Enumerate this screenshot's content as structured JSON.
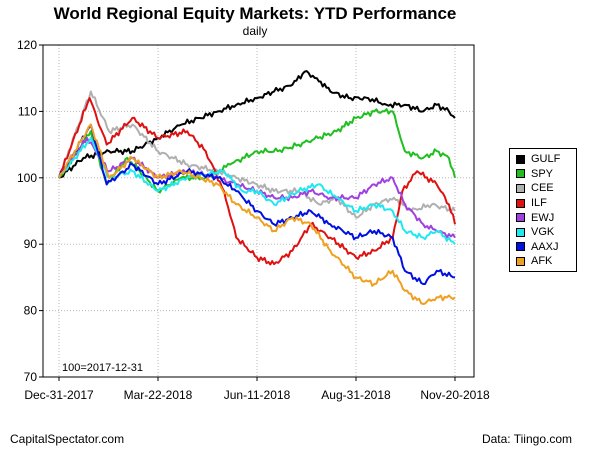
{
  "title": "World Regional Equity Markets: YTD Performance",
  "subtitle": "daily",
  "baseline_note": "100=2017-12-31",
  "footer": {
    "source_left": "CapitalSpectator.com",
    "source_right": "Data: Tiingo.com"
  },
  "colors": {
    "GULF": "#000000",
    "SPY": "#1fbf1f",
    "CEE": "#b0b0b0",
    "ILF": "#e01010",
    "EWJ": "#a040e0",
    "VGK": "#20e8f0",
    "AAXJ": "#0010e0",
    "AFK": "#f0a020"
  },
  "chart_data": {
    "type": "line",
    "title": "World Regional Equity Markets: YTD Performance",
    "subtitle": "daily",
    "x_ticks": [
      "Dec-31-2017",
      "Mar-22-2018",
      "Jun-11-2018",
      "Aug-31-2018",
      "Nov-20-2018"
    ],
    "x_range": [
      "2017-12-31",
      "2018-11-20"
    ],
    "y_ticks": [
      70,
      80,
      90,
      100,
      110,
      120
    ],
    "ylim": [
      70,
      120
    ],
    "grid": true,
    "legend_position": "right",
    "series": [
      {
        "name": "GULF",
        "points": [
          [
            "2017-12-31",
            100
          ],
          [
            "2018-01-20",
            103
          ],
          [
            "2018-02-10",
            104
          ],
          [
            "2018-03-01",
            104
          ],
          [
            "2018-03-22",
            106
          ],
          [
            "2018-04-10",
            108
          ],
          [
            "2018-04-25",
            109
          ],
          [
            "2018-05-10",
            110
          ],
          [
            "2018-05-25",
            111
          ],
          [
            "2018-06-11",
            112
          ],
          [
            "2018-06-25",
            113
          ],
          [
            "2018-07-10",
            114
          ],
          [
            "2018-07-20",
            116
          ],
          [
            "2018-07-30",
            115
          ],
          [
            "2018-08-10",
            113
          ],
          [
            "2018-08-25",
            112
          ],
          [
            "2018-09-10",
            112
          ],
          [
            "2018-09-25",
            111
          ],
          [
            "2018-10-10",
            111
          ],
          [
            "2018-10-25",
            110
          ],
          [
            "2018-11-05",
            111
          ],
          [
            "2018-11-15",
            110
          ],
          [
            "2018-11-20",
            109
          ]
        ]
      },
      {
        "name": "SPY",
        "points": [
          [
            "2017-12-31",
            100
          ],
          [
            "2018-01-26",
            107
          ],
          [
            "2018-02-08",
            99
          ],
          [
            "2018-02-25",
            103
          ],
          [
            "2018-03-22",
            98
          ],
          [
            "2018-04-10",
            100
          ],
          [
            "2018-04-30",
            100
          ],
          [
            "2018-05-20",
            102
          ],
          [
            "2018-06-11",
            104
          ],
          [
            "2018-06-28",
            104
          ],
          [
            "2018-07-15",
            105
          ],
          [
            "2018-07-31",
            106
          ],
          [
            "2018-08-15",
            107
          ],
          [
            "2018-08-31",
            109
          ],
          [
            "2018-09-15",
            110
          ],
          [
            "2018-09-30",
            110
          ],
          [
            "2018-10-10",
            104
          ],
          [
            "2018-10-25",
            103
          ],
          [
            "2018-11-05",
            104
          ],
          [
            "2018-11-15",
            103
          ],
          [
            "2018-11-20",
            100
          ]
        ]
      },
      {
        "name": "CEE",
        "points": [
          [
            "2017-12-31",
            100
          ],
          [
            "2018-01-26",
            113
          ],
          [
            "2018-02-10",
            107
          ],
          [
            "2018-03-01",
            108
          ],
          [
            "2018-03-22",
            104
          ],
          [
            "2018-04-15",
            102
          ],
          [
            "2018-05-10",
            101
          ],
          [
            "2018-05-25",
            100
          ],
          [
            "2018-06-11",
            99
          ],
          [
            "2018-06-25",
            98
          ],
          [
            "2018-07-15",
            98
          ],
          [
            "2018-08-01",
            96
          ],
          [
            "2018-08-15",
            97
          ],
          [
            "2018-08-31",
            94
          ],
          [
            "2018-09-15",
            96
          ],
          [
            "2018-10-01",
            97
          ],
          [
            "2018-10-15",
            95
          ],
          [
            "2018-11-01",
            96
          ],
          [
            "2018-11-20",
            95
          ]
        ]
      },
      {
        "name": "ILF",
        "points": [
          [
            "2017-12-31",
            100
          ],
          [
            "2018-01-25",
            112
          ],
          [
            "2018-02-08",
            105
          ],
          [
            "2018-03-01",
            109
          ],
          [
            "2018-03-22",
            106
          ],
          [
            "2018-04-15",
            107
          ],
          [
            "2018-04-30",
            104
          ],
          [
            "2018-05-15",
            98
          ],
          [
            "2018-05-25",
            91
          ],
          [
            "2018-06-11",
            88
          ],
          [
            "2018-06-25",
            87
          ],
          [
            "2018-07-10",
            89
          ],
          [
            "2018-07-25",
            93
          ],
          [
            "2018-08-10",
            91
          ],
          [
            "2018-08-31",
            88
          ],
          [
            "2018-09-15",
            89
          ],
          [
            "2018-09-30",
            91
          ],
          [
            "2018-10-08",
            98
          ],
          [
            "2018-10-20",
            101
          ],
          [
            "2018-11-05",
            99
          ],
          [
            "2018-11-15",
            96
          ],
          [
            "2018-11-20",
            93
          ]
        ]
      },
      {
        "name": "EWJ",
        "points": [
          [
            "2017-12-31",
            100
          ],
          [
            "2018-01-23",
            106
          ],
          [
            "2018-02-10",
            101
          ],
          [
            "2018-03-01",
            103
          ],
          [
            "2018-03-22",
            100
          ],
          [
            "2018-04-15",
            101
          ],
          [
            "2018-05-10",
            100
          ],
          [
            "2018-05-25",
            99
          ],
          [
            "2018-06-11",
            98
          ],
          [
            "2018-06-25",
            97
          ],
          [
            "2018-07-10",
            97
          ],
          [
            "2018-07-25",
            98
          ],
          [
            "2018-08-10",
            97
          ],
          [
            "2018-08-31",
            97
          ],
          [
            "2018-09-15",
            99
          ],
          [
            "2018-09-30",
            100
          ],
          [
            "2018-10-10",
            96
          ],
          [
            "2018-10-25",
            93
          ],
          [
            "2018-11-05",
            92
          ],
          [
            "2018-11-20",
            91
          ]
        ]
      },
      {
        "name": "VGK",
        "points": [
          [
            "2017-12-31",
            100
          ],
          [
            "2018-01-26",
            106
          ],
          [
            "2018-02-10",
            100
          ],
          [
            "2018-03-01",
            101
          ],
          [
            "2018-03-22",
            98
          ],
          [
            "2018-04-15",
            100
          ],
          [
            "2018-05-15",
            101
          ],
          [
            "2018-05-30",
            98
          ],
          [
            "2018-06-11",
            98
          ],
          [
            "2018-06-25",
            96
          ],
          [
            "2018-07-15",
            98
          ],
          [
            "2018-07-31",
            99
          ],
          [
            "2018-08-15",
            97
          ],
          [
            "2018-08-31",
            95
          ],
          [
            "2018-09-15",
            96
          ],
          [
            "2018-09-30",
            95
          ],
          [
            "2018-10-10",
            92
          ],
          [
            "2018-10-25",
            91
          ],
          [
            "2018-11-05",
            92
          ],
          [
            "2018-11-20",
            90
          ]
        ]
      },
      {
        "name": "AAXJ",
        "points": [
          [
            "2017-12-31",
            100
          ],
          [
            "2018-01-26",
            108
          ],
          [
            "2018-02-08",
            99
          ],
          [
            "2018-03-01",
            102
          ],
          [
            "2018-03-22",
            99
          ],
          [
            "2018-04-15",
            101
          ],
          [
            "2018-05-10",
            100
          ],
          [
            "2018-05-25",
            98
          ],
          [
            "2018-06-11",
            95
          ],
          [
            "2018-06-25",
            93
          ],
          [
            "2018-07-10",
            94
          ],
          [
            "2018-07-25",
            95
          ],
          [
            "2018-08-10",
            93
          ],
          [
            "2018-08-31",
            91
          ],
          [
            "2018-09-15",
            92
          ],
          [
            "2018-09-30",
            91
          ],
          [
            "2018-10-10",
            86
          ],
          [
            "2018-10-25",
            84
          ],
          [
            "2018-11-05",
            86
          ],
          [
            "2018-11-20",
            85
          ]
        ]
      },
      {
        "name": "AFK",
        "points": [
          [
            "2017-12-31",
            100
          ],
          [
            "2018-01-26",
            108
          ],
          [
            "2018-02-10",
            100
          ],
          [
            "2018-03-01",
            103
          ],
          [
            "2018-03-22",
            100
          ],
          [
            "2018-04-10",
            101
          ],
          [
            "2018-05-10",
            99
          ],
          [
            "2018-05-25",
            96
          ],
          [
            "2018-06-11",
            94
          ],
          [
            "2018-06-25",
            92
          ],
          [
            "2018-07-10",
            94
          ],
          [
            "2018-07-25",
            93
          ],
          [
            "2018-08-10",
            89
          ],
          [
            "2018-08-31",
            85
          ],
          [
            "2018-09-15",
            84
          ],
          [
            "2018-09-30",
            86
          ],
          [
            "2018-10-10",
            83
          ],
          [
            "2018-10-25",
            81
          ],
          [
            "2018-11-05",
            82
          ],
          [
            "2018-11-20",
            82
          ]
        ]
      }
    ]
  }
}
